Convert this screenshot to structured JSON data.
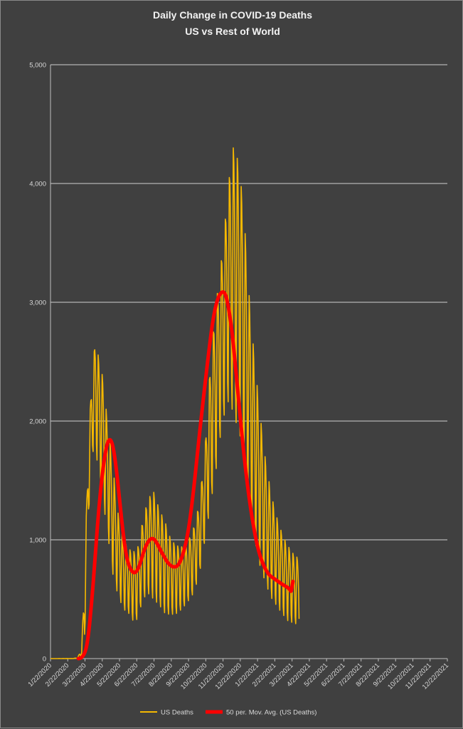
{
  "chart_data": {
    "type": "line",
    "title": "Daily Change in COVID-19 Deaths",
    "subtitle": "US vs Rest of World",
    "xlabel": "",
    "ylabel": "",
    "ylim": [
      0,
      5000
    ],
    "yticks": [
      "0",
      "1,000",
      "2,000",
      "3,000",
      "4,000",
      "5,000"
    ],
    "xticks": [
      "1/22/2020",
      "2/22/2020",
      "3/22/2020",
      "4/22/2020",
      "5/22/2020",
      "6/22/2020",
      "7/22/2020",
      "8/22/2020",
      "9/22/2020",
      "10/22/2020",
      "11/22/2020",
      "12/22/2020",
      "1/22/2021",
      "2/22/2021",
      "3/22/2021",
      "4/22/2021",
      "5/22/2021",
      "6/22/2021",
      "7/22/2021",
      "8/22/2021",
      "9/22/2021",
      "10/22/2021",
      "11/22/2021",
      "12/22/2021"
    ],
    "grid": true,
    "legend_position": "bottom",
    "series": [
      {
        "name": "US Deaths",
        "color": "#f5b800",
        "style": "daily",
        "anchors": [
          [
            0,
            0,
            0
          ],
          [
            40,
            1,
            0
          ],
          [
            48,
            8,
            3
          ],
          [
            55,
            90,
            20
          ],
          [
            60,
            700,
            150
          ],
          [
            66,
            1700,
            1100
          ],
          [
            72,
            2300,
            1700
          ],
          [
            79,
            2700,
            1800
          ],
          [
            86,
            2500,
            1500
          ],
          [
            93,
            2350,
            1300
          ],
          [
            100,
            2000,
            1100
          ],
          [
            108,
            1700,
            750
          ],
          [
            118,
            1250,
            550
          ],
          [
            128,
            1000,
            420
          ],
          [
            138,
            920,
            380
          ],
          [
            148,
            900,
            300
          ],
          [
            155,
            950,
            350
          ],
          [
            162,
            1150,
            500
          ],
          [
            172,
            1350,
            550
          ],
          [
            182,
            1400,
            500
          ],
          [
            192,
            1250,
            450
          ],
          [
            202,
            1150,
            380
          ],
          [
            212,
            1000,
            370
          ],
          [
            222,
            950,
            380
          ],
          [
            232,
            940,
            420
          ],
          [
            242,
            980,
            480
          ],
          [
            252,
            1100,
            550
          ],
          [
            262,
            1300,
            700
          ],
          [
            272,
            1750,
            1000
          ],
          [
            282,
            2500,
            1300
          ],
          [
            292,
            3000,
            1600
          ],
          [
            300,
            3300,
            1900
          ],
          [
            308,
            3700,
            2100
          ],
          [
            316,
            4100,
            2200
          ],
          [
            322,
            4300,
            2050
          ],
          [
            330,
            4200,
            1950
          ],
          [
            338,
            3900,
            1800
          ],
          [
            345,
            3450,
            1550
          ],
          [
            352,
            2900,
            1250
          ],
          [
            360,
            2500,
            1000
          ],
          [
            368,
            2100,
            800
          ],
          [
            378,
            1700,
            650
          ],
          [
            388,
            1400,
            520
          ],
          [
            398,
            1200,
            450
          ],
          [
            408,
            1050,
            380
          ],
          [
            418,
            950,
            320
          ],
          [
            428,
            880,
            300
          ],
          [
            435,
            850,
            290
          ],
          [
            438,
            820,
            280
          ]
        ]
      },
      {
        "name": "50 per. Mov. Avg. (US Deaths)",
        "color": "#ff0000",
        "style": "smooth",
        "points": [
          [
            49,
            0
          ],
          [
            55,
            5
          ],
          [
            62,
            60
          ],
          [
            67,
            200
          ],
          [
            72,
            450
          ],
          [
            78,
            800
          ],
          [
            84,
            1200
          ],
          [
            91,
            1550
          ],
          [
            98,
            1780
          ],
          [
            104,
            1860
          ],
          [
            110,
            1800
          ],
          [
            116,
            1600
          ],
          [
            122,
            1320
          ],
          [
            128,
            1050
          ],
          [
            134,
            850
          ],
          [
            140,
            760
          ],
          [
            146,
            720
          ],
          [
            152,
            730
          ],
          [
            158,
            800
          ],
          [
            164,
            900
          ],
          [
            170,
            970
          ],
          [
            176,
            1010
          ],
          [
            182,
            1010
          ],
          [
            188,
            970
          ],
          [
            194,
            910
          ],
          [
            200,
            860
          ],
          [
            206,
            810
          ],
          [
            212,
            780
          ],
          [
            218,
            770
          ],
          [
            224,
            780
          ],
          [
            230,
            830
          ],
          [
            236,
            920
          ],
          [
            242,
            1050
          ],
          [
            248,
            1250
          ],
          [
            254,
            1500
          ],
          [
            260,
            1780
          ],
          [
            266,
            2050
          ],
          [
            272,
            2300
          ],
          [
            278,
            2550
          ],
          [
            284,
            2780
          ],
          [
            290,
            2950
          ],
          [
            296,
            3050
          ],
          [
            302,
            3090
          ],
          [
            308,
            3080
          ],
          [
            314,
            2950
          ],
          [
            320,
            2750
          ],
          [
            326,
            2450
          ],
          [
            332,
            2150
          ],
          [
            338,
            1850
          ],
          [
            344,
            1580
          ],
          [
            350,
            1350
          ],
          [
            356,
            1160
          ],
          [
            362,
            1000
          ],
          [
            368,
            880
          ],
          [
            374,
            800
          ],
          [
            380,
            740
          ],
          [
            386,
            700
          ],
          [
            392,
            680
          ],
          [
            398,
            660
          ],
          [
            404,
            640
          ],
          [
            410,
            620
          ],
          [
            416,
            605
          ],
          [
            420,
            590
          ],
          [
            422,
            580
          ],
          [
            424,
            560
          ],
          [
            426,
            620
          ],
          [
            427,
            650
          ]
        ]
      }
    ]
  }
}
